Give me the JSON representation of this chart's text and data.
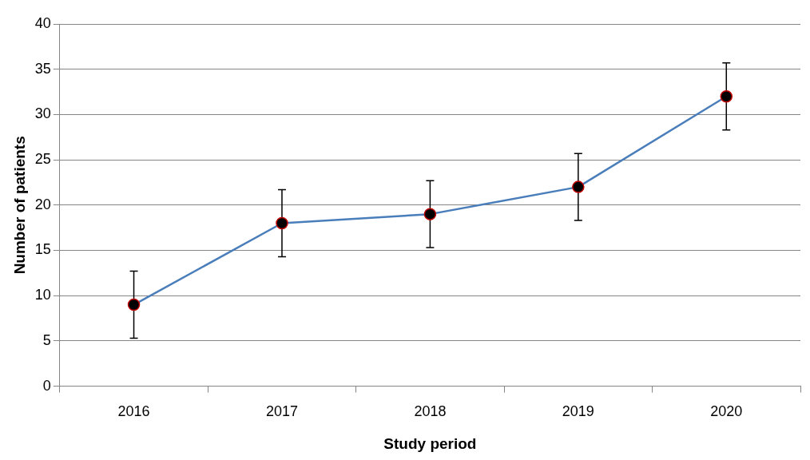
{
  "chart_data": {
    "type": "line",
    "xlabel": "Study period",
    "ylabel": "Number of patients",
    "categories": [
      "2016",
      "2017",
      "2018",
      "2019",
      "2020"
    ],
    "series": [
      {
        "color": "#4a7ebb",
        "values": [
          9,
          18,
          19,
          22,
          32
        ],
        "errors": [
          3.7,
          3.7,
          3.7,
          3.7,
          3.7
        ]
      }
    ],
    "ylim": [
      0,
      40
    ],
    "yticks": [
      0,
      5,
      10,
      15,
      20,
      25,
      30,
      35,
      40
    ],
    "grid": "y",
    "legend": false,
    "marker": "circle",
    "line_style": "solid"
  }
}
